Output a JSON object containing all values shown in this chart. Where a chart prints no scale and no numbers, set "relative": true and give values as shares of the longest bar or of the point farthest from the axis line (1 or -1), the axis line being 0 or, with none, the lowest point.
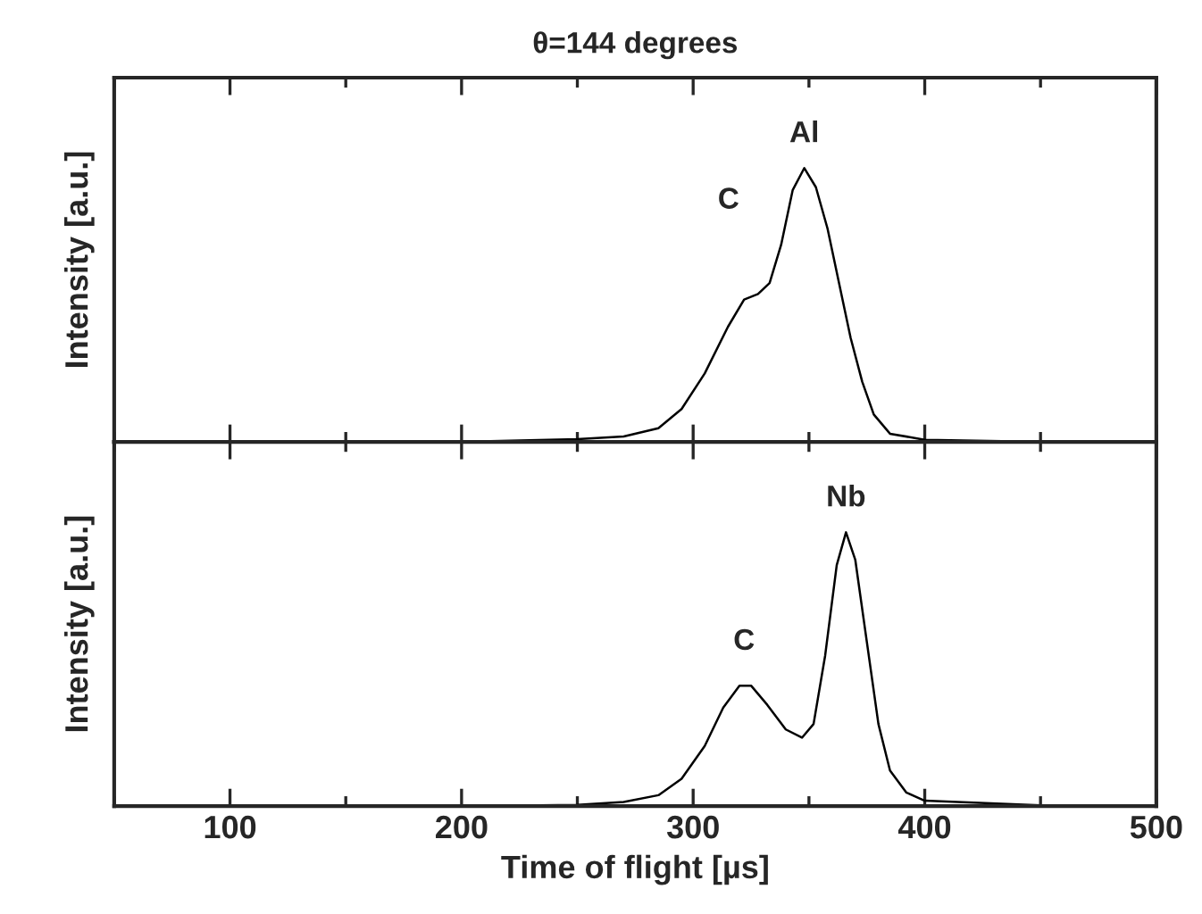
{
  "chart_data": [
    {
      "type": "line",
      "title": "θ=144 degrees",
      "ylabel": "Intensity [a.u.]",
      "relative": true,
      "xlim": [
        50,
        500
      ],
      "xticks": [
        100,
        200,
        300,
        400,
        500
      ],
      "tick_labels": false,
      "grid": false,
      "legend": false,
      "marker": "none",
      "line_style": "solid",
      "x": [
        60,
        200,
        250,
        270,
        285,
        295,
        305,
        315,
        322,
        328,
        333,
        338,
        343,
        348,
        353,
        358,
        363,
        368,
        373,
        378,
        385,
        400,
        450,
        500
      ],
      "series": [
        {
          "color": "#000000",
          "values": [
            0,
            0,
            0.01,
            0.02,
            0.05,
            0.12,
            0.25,
            0.42,
            0.52,
            0.54,
            0.58,
            0.72,
            0.92,
            1.0,
            0.93,
            0.78,
            0.58,
            0.38,
            0.22,
            0.1,
            0.03,
            0.008,
            0,
            0
          ]
        }
      ],
      "annotations": [
        {
          "text": "C",
          "x": 326,
          "y": 0.54
        },
        {
          "text": "Al",
          "x": 348,
          "y": 1.0
        }
      ]
    },
    {
      "type": "line",
      "xlabel": "Time of flight [µs]",
      "ylabel": "Intensity [a.u.]",
      "relative": true,
      "xlim": [
        50,
        500
      ],
      "xticks": [
        100,
        200,
        300,
        400,
        500
      ],
      "tick_labels": "x",
      "grid": false,
      "legend": false,
      "marker": "none",
      "line_style": "solid",
      "x": [
        60,
        200,
        250,
        270,
        285,
        295,
        305,
        313,
        320,
        325,
        332,
        340,
        347,
        352,
        357,
        362,
        366,
        370,
        375,
        380,
        385,
        392,
        400,
        450,
        500
      ],
      "series": [
        {
          "color": "#000000",
          "values": [
            0,
            0,
            0.005,
            0.015,
            0.04,
            0.1,
            0.22,
            0.36,
            0.44,
            0.44,
            0.37,
            0.28,
            0.25,
            0.3,
            0.55,
            0.88,
            1.0,
            0.9,
            0.6,
            0.3,
            0.13,
            0.05,
            0.02,
            0.003,
            0
          ]
        }
      ],
      "annotations": [
        {
          "text": "C",
          "x": 322,
          "y": 0.44
        },
        {
          "text": "Nb",
          "x": 366,
          "y": 1.0
        }
      ]
    }
  ]
}
